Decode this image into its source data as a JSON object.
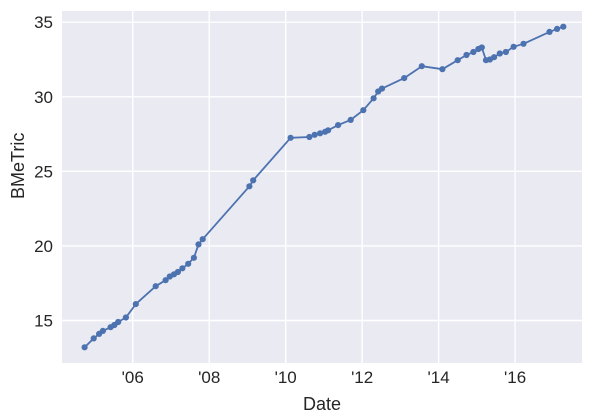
{
  "chart_data": {
    "type": "line",
    "title": "",
    "xlabel": "Date",
    "ylabel": "BMeTric",
    "legend": "none",
    "grid": true,
    "xlim": [
      2004.15,
      2017.75
    ],
    "ylim": [
      12.15,
      35.75
    ],
    "x_ticks": [
      {
        "value": 2006,
        "label": "'06"
      },
      {
        "value": 2008,
        "label": "'08"
      },
      {
        "value": 2010,
        "label": "'10"
      },
      {
        "value": 2012,
        "label": "'12"
      },
      {
        "value": 2014,
        "label": "'14"
      },
      {
        "value": 2016,
        "label": "'16"
      }
    ],
    "y_ticks": [
      {
        "value": 15,
        "label": "15"
      },
      {
        "value": 20,
        "label": "20"
      },
      {
        "value": 25,
        "label": "25"
      },
      {
        "value": 30,
        "label": "30"
      },
      {
        "value": 35,
        "label": "35"
      }
    ],
    "series": [
      {
        "name": "BMeTric",
        "color": "#4C72B0",
        "marker": "circle",
        "points": [
          [
            2004.74,
            13.2
          ],
          [
            2004.98,
            13.8
          ],
          [
            2005.12,
            14.1
          ],
          [
            2005.22,
            14.3
          ],
          [
            2005.42,
            14.55
          ],
          [
            2005.52,
            14.7
          ],
          [
            2005.62,
            14.9
          ],
          [
            2005.82,
            15.2
          ],
          [
            2006.08,
            16.1
          ],
          [
            2006.6,
            17.3
          ],
          [
            2006.86,
            17.7
          ],
          [
            2006.97,
            17.95
          ],
          [
            2007.08,
            18.1
          ],
          [
            2007.18,
            18.25
          ],
          [
            2007.3,
            18.5
          ],
          [
            2007.45,
            18.8
          ],
          [
            2007.6,
            19.2
          ],
          [
            2007.72,
            20.1
          ],
          [
            2007.83,
            20.45
          ],
          [
            2009.05,
            24.0
          ],
          [
            2009.15,
            24.4
          ],
          [
            2010.13,
            27.25
          ],
          [
            2010.62,
            27.3
          ],
          [
            2010.76,
            27.45
          ],
          [
            2010.9,
            27.55
          ],
          [
            2011.03,
            27.65
          ],
          [
            2011.11,
            27.75
          ],
          [
            2011.37,
            28.1
          ],
          [
            2011.7,
            28.45
          ],
          [
            2012.03,
            29.1
          ],
          [
            2012.3,
            29.9
          ],
          [
            2012.42,
            30.35
          ],
          [
            2012.52,
            30.55
          ],
          [
            2013.1,
            31.25
          ],
          [
            2013.56,
            32.05
          ],
          [
            2014.1,
            31.85
          ],
          [
            2014.5,
            32.45
          ],
          [
            2014.73,
            32.8
          ],
          [
            2014.91,
            33.0
          ],
          [
            2015.04,
            33.2
          ],
          [
            2015.13,
            33.3
          ],
          [
            2015.24,
            32.45
          ],
          [
            2015.34,
            32.5
          ],
          [
            2015.45,
            32.65
          ],
          [
            2015.6,
            32.9
          ],
          [
            2015.76,
            33.0
          ],
          [
            2015.96,
            33.35
          ],
          [
            2016.22,
            33.55
          ],
          [
            2016.9,
            34.35
          ],
          [
            2017.1,
            34.55
          ],
          [
            2017.26,
            34.7
          ]
        ]
      }
    ],
    "style": {
      "plot_bg": "#EAEAF2",
      "grid_color": "#FFFFFF",
      "text_color": "#262626",
      "page_bg": "#FFFFFF",
      "line_width": 1.8,
      "marker_radius": 3.1,
      "tick_font_size": 17,
      "label_font_size": 18
    }
  }
}
